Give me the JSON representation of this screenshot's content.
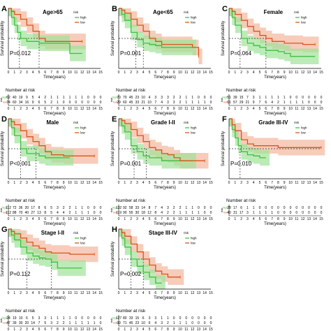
{
  "legend": {
    "title": "risk",
    "high_label": "high",
    "low_label": "low"
  },
  "colors": {
    "high": "#3fbf3f",
    "low": "#d9541b",
    "high_ci": "#9fe39a",
    "low_ci": "#f4b79c",
    "dash": "#333333",
    "grid": "#666666"
  },
  "axis": {
    "ylabel": "Survival probability",
    "xlabel": "Time(years)",
    "xticks": [
      0,
      1,
      2,
      3,
      4,
      5,
      6,
      7,
      8,
      9,
      10,
      11,
      12,
      13,
      14,
      15
    ],
    "yticks": [
      "0.00",
      "0.25",
      "0.50",
      "0.75",
      "1.00"
    ]
  },
  "risk_table": {
    "title": "Number at risk",
    "ylabel": "risk",
    "row_high": "high",
    "row_low": "low"
  },
  "chart_data": [
    {
      "type": "line",
      "letter": "A",
      "title": "Age>65",
      "pvalue": "P=0.012",
      "median_dash": [
        1.8,
        5.0
      ],
      "xlim": [
        0,
        15
      ],
      "ylim": [
        0,
        1
      ],
      "series": [
        {
          "name": "high",
          "x": [
            0,
            0.5,
            1,
            1.5,
            2,
            3,
            4,
            5,
            6,
            7,
            8,
            10,
            12
          ],
          "y": [
            1,
            0.85,
            0.72,
            0.6,
            0.5,
            0.45,
            0.45,
            0.42,
            0.42,
            0.42,
            0.42,
            0.25,
            0.25
          ]
        },
        {
          "name": "low",
          "x": [
            0,
            0.5,
            1,
            2,
            3,
            4,
            5,
            6,
            7,
            8,
            9,
            12
          ],
          "y": [
            1,
            0.95,
            0.9,
            0.82,
            0.72,
            0.62,
            0.5,
            0.45,
            0.45,
            0.45,
            0.45,
            0.45
          ]
        }
      ],
      "risk_high": [
        "62",
        "40",
        "19",
        "9",
        "5",
        "4",
        "2",
        "1",
        "1",
        "1",
        "1",
        "1",
        "1",
        "0",
        "0",
        "0"
      ],
      "risk_low": [
        "74",
        "60",
        "34",
        "16",
        "9",
        "6",
        "5",
        "2",
        "1",
        "0",
        "0",
        "0",
        "0",
        "0",
        "0",
        "0"
      ]
    },
    {
      "type": "line",
      "letter": "B",
      "title": "Age<65",
      "pvalue": "P=0.001",
      "median_dash": [
        2.8,
        4.0
      ],
      "xlim": [
        0,
        15
      ],
      "ylim": [
        0,
        1
      ],
      "series": [
        {
          "name": "high",
          "x": [
            0,
            0.5,
            1,
            2,
            3,
            4,
            5,
            6,
            7,
            8,
            10,
            12
          ],
          "y": [
            1,
            0.9,
            0.8,
            0.6,
            0.48,
            0.42,
            0.4,
            0.38,
            0.35,
            0.35,
            0.35,
            0.35
          ]
        },
        {
          "name": "low",
          "x": [
            0,
            0.5,
            1,
            2,
            3,
            4,
            5,
            6,
            7,
            8,
            10,
            12,
            13
          ],
          "y": [
            1,
            0.97,
            0.92,
            0.82,
            0.72,
            0.62,
            0.5,
            0.45,
            0.4,
            0.4,
            0.4,
            0.35,
            0.2
          ]
        }
      ],
      "risk_high": [
        "70",
        "70",
        "45",
        "23",
        "10",
        "4",
        "3",
        "3",
        "3",
        "2",
        "2",
        "1",
        "1",
        "0",
        "0",
        "0"
      ],
      "risk_low": [
        "29",
        "60",
        "45",
        "33",
        "21",
        "10",
        "7",
        "4",
        "3",
        "3",
        "2",
        "1",
        "1",
        "1",
        "1",
        "0"
      ]
    },
    {
      "type": "line",
      "letter": "C",
      "title": "Female",
      "pvalue": "P=0.064",
      "median_dash": [
        1.8,
        6.0
      ],
      "xlim": [
        0,
        15
      ],
      "ylim": [
        0,
        1
      ],
      "series": [
        {
          "name": "high",
          "x": [
            0,
            0.5,
            1,
            2,
            3,
            4,
            5,
            6,
            7,
            8,
            9,
            10,
            12,
            14
          ],
          "y": [
            1,
            0.85,
            0.72,
            0.5,
            0.42,
            0.38,
            0.35,
            0.3,
            0.3,
            0.28,
            0.25,
            0.2,
            0.2,
            0.2
          ]
        },
        {
          "name": "low",
          "x": [
            0,
            0.5,
            1,
            2,
            3,
            4,
            5,
            6,
            7,
            8,
            9,
            10,
            12,
            14
          ],
          "y": [
            1,
            0.95,
            0.9,
            0.8,
            0.7,
            0.62,
            0.55,
            0.5,
            0.45,
            0.45,
            0.42,
            0.42,
            0.4,
            0.4
          ]
        }
      ],
      "risk_high": [
        "51",
        "39",
        "15",
        "7",
        "3",
        "1",
        "1",
        "1",
        "1",
        "1",
        "0",
        "0",
        "0",
        "0",
        "0",
        "0"
      ],
      "risk_low": [
        "61",
        "57",
        "29",
        "21",
        "9",
        "7",
        "6",
        "4",
        "2",
        "1",
        "1",
        "1",
        "1",
        "0",
        "0",
        "0"
      ]
    },
    {
      "type": "line",
      "letter": "D",
      "title": "Male",
      "pvalue": "P<0.001",
      "median_dash": [
        2.0,
        4.5
      ],
      "xlim": [
        0,
        15
      ],
      "ylim": [
        0,
        1
      ],
      "series": [
        {
          "name": "high",
          "x": [
            0,
            0.5,
            1,
            2,
            3,
            4,
            5,
            6,
            7,
            8,
            10
          ],
          "y": [
            1,
            0.85,
            0.72,
            0.5,
            0.42,
            0.42,
            0.38,
            0.35,
            0.35,
            0.35,
            0.35
          ]
        },
        {
          "name": "low",
          "x": [
            0,
            0.5,
            1,
            2,
            3,
            4,
            5,
            6,
            7,
            8,
            9,
            10,
            12,
            14
          ],
          "y": [
            1,
            0.95,
            0.9,
            0.8,
            0.7,
            0.62,
            0.55,
            0.45,
            0.4,
            0.4,
            0.38,
            0.38,
            0.38,
            0.38
          ]
        }
      ],
      "risk_high": [
        "112",
        "72",
        "36",
        "20",
        "17",
        "8",
        "6",
        "5",
        "3",
        "2",
        "2",
        "1",
        "1",
        "0",
        "0",
        "0"
      ],
      "risk_low": [
        "112",
        "88",
        "70",
        "40",
        "27",
        "13",
        "8",
        "5",
        "4",
        "4",
        "2",
        "1",
        "1",
        "1",
        "0",
        "0"
      ]
    },
    {
      "type": "line",
      "letter": "E",
      "title": "Grade I-II",
      "pvalue": "P=0.001",
      "median_dash": [
        2.5,
        4.5
      ],
      "xlim": [
        0,
        15
      ],
      "ylim": [
        0,
        1
      ],
      "series": [
        {
          "name": "high",
          "x": [
            0,
            0.5,
            1,
            2,
            3,
            4,
            5,
            6,
            7,
            8,
            10,
            12
          ],
          "y": [
            1,
            0.88,
            0.78,
            0.55,
            0.45,
            0.38,
            0.35,
            0.35,
            0.3,
            0.3,
            0.3,
            0.3
          ]
        },
        {
          "name": "low",
          "x": [
            0,
            0.5,
            1,
            2,
            3,
            4,
            5,
            6,
            7,
            8,
            9,
            10,
            12,
            14
          ],
          "y": [
            1,
            0.97,
            0.92,
            0.82,
            0.72,
            0.62,
            0.52,
            0.48,
            0.42,
            0.4,
            0.35,
            0.3,
            0.3,
            0.3
          ]
        }
      ],
      "risk_high": [
        "132",
        "92",
        "58",
        "33",
        "14",
        "8",
        "7",
        "4",
        "3",
        "2",
        "2",
        "1",
        "1",
        "0",
        "0",
        "0"
      ],
      "risk_low": [
        "119",
        "90",
        "55",
        "30",
        "18",
        "12",
        "8",
        "4",
        "2",
        "2",
        "1",
        "1",
        "1",
        "1",
        "0",
        "0"
      ]
    },
    {
      "type": "line",
      "letter": "F",
      "title": "Grade III-IV",
      "pvalue": "P=0.010",
      "median_dash": [
        1.8,
        15.0
      ],
      "xlim": [
        0,
        15
      ],
      "ylim": [
        0,
        1
      ],
      "series": [
        {
          "name": "high",
          "x": [
            0,
            0.5,
            1,
            1.5,
            2,
            3,
            4,
            5,
            6
          ],
          "y": [
            1,
            0.82,
            0.68,
            0.55,
            0.45,
            0.4,
            0.38,
            0.35,
            0.35
          ]
        },
        {
          "name": "low",
          "x": [
            0,
            0.5,
            1,
            2,
            3,
            4,
            5,
            6,
            8,
            10,
            12,
            14,
            15
          ],
          "y": [
            1,
            0.9,
            0.8,
            0.65,
            0.58,
            0.55,
            0.55,
            0.55,
            0.52,
            0.52,
            0.52,
            0.52,
            0.52
          ]
        }
      ],
      "risk_high": [
        "28",
        "17",
        "6",
        "1",
        "1",
        "0",
        "0",
        "0",
        "0",
        "0",
        "0",
        "0",
        "0",
        "0",
        "0",
        "0"
      ],
      "risk_low": [
        "40",
        "31",
        "17",
        "3",
        "1",
        "1",
        "1",
        "1",
        "0",
        "0",
        "0",
        "0",
        "0",
        "0",
        "0",
        "0"
      ]
    },
    {
      "type": "line",
      "letter": "G",
      "title": "Stage I-II",
      "pvalue": "P=0.112",
      "median_dash": [
        3.0,
        7.0
      ],
      "xlim": [
        0,
        15
      ],
      "ylim": [
        0,
        1
      ],
      "series": [
        {
          "name": "high",
          "x": [
            0,
            0.5,
            1,
            2,
            3,
            4,
            5,
            6,
            7,
            8,
            10,
            12
          ],
          "y": [
            1,
            0.9,
            0.82,
            0.7,
            0.6,
            0.55,
            0.52,
            0.5,
            0.45,
            0.35,
            0.35,
            0.35
          ]
        },
        {
          "name": "low",
          "x": [
            0,
            0.5,
            1,
            2,
            3,
            4,
            5,
            6,
            7,
            8,
            10,
            12,
            14
          ],
          "y": [
            1,
            0.96,
            0.92,
            0.85,
            0.78,
            0.72,
            0.68,
            0.62,
            0.6,
            0.6,
            0.58,
            0.58,
            0.58
          ]
        }
      ],
      "risk_high": [
        "24",
        "19",
        "10",
        "6",
        "5",
        "3",
        "3",
        "1",
        "1",
        "1",
        "1",
        "0",
        "0",
        "0",
        "0",
        "0"
      ],
      "risk_low": [
        "47",
        "39",
        "30",
        "20",
        "14",
        "7",
        "5",
        "3",
        "2",
        "2",
        "1",
        "1",
        "1",
        "1",
        "1",
        "0"
      ]
    },
    {
      "type": "line",
      "letter": "H",
      "title": "Stage III-IV",
      "pvalue": "P=0.002",
      "median_dash": [
        2.0,
        4.0
      ],
      "xlim": [
        0,
        15
      ],
      "ylim": [
        0,
        1
      ],
      "series": [
        {
          "name": "high",
          "x": [
            0,
            0.5,
            1,
            2,
            3,
            4,
            5,
            6,
            7
          ],
          "y": [
            1,
            0.85,
            0.7,
            0.5,
            0.38,
            0.28,
            0.2,
            0.1,
            0.1
          ]
        },
        {
          "name": "low",
          "x": [
            0,
            0.5,
            1,
            2,
            3,
            4,
            5,
            6,
            7,
            8,
            10
          ],
          "y": [
            1,
            0.94,
            0.88,
            0.75,
            0.62,
            0.5,
            0.4,
            0.3,
            0.25,
            0.2,
            0.2
          ]
        }
      ],
      "risk_high": [
        "127",
        "80",
        "33",
        "15",
        "6",
        "3",
        "3",
        "1",
        "1",
        "0",
        "0",
        "0",
        "0",
        "0",
        "0",
        "0"
      ],
      "risk_low": [
        "99",
        "71",
        "45",
        "23",
        "10",
        "6",
        "4",
        "3",
        "2",
        "1",
        "1",
        "1",
        "0",
        "0",
        "0",
        "0"
      ]
    }
  ]
}
